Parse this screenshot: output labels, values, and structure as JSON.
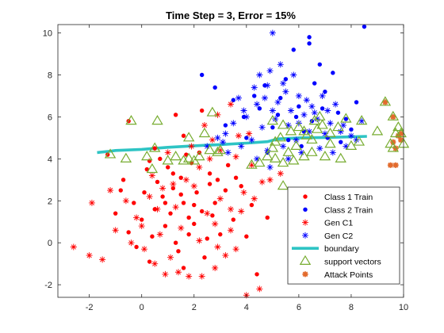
{
  "chart_data": {
    "type": "scatter",
    "title": "Time Step = 3, Error = 15%",
    "xlabel": "",
    "ylabel": "",
    "xlim": [
      -3.2,
      10
    ],
    "ylim": [
      -2.6,
      10.4
    ],
    "xticks": [
      -2,
      0,
      2,
      4,
      6,
      8,
      10
    ],
    "yticks": [
      -2,
      0,
      2,
      4,
      6,
      8,
      10
    ],
    "grid": false,
    "legend_position": "bottom-right",
    "series": [
      {
        "name": "Class 1 Train",
        "marker": "dot",
        "color": "#ff0000",
        "points": [
          [
            0.2,
            3.5
          ],
          [
            0.5,
            1.6
          ],
          [
            -0.3,
            1.9
          ],
          [
            0.8,
            2.2
          ],
          [
            1.2,
            2.6
          ],
          [
            1.5,
            3.1
          ],
          [
            1.1,
            1.4
          ],
          [
            0.9,
            0.8
          ],
          [
            1.6,
            1.9
          ],
          [
            2.1,
            2.4
          ],
          [
            2.3,
            1.5
          ],
          [
            0.4,
            0.3
          ],
          [
            1.4,
            -0.4
          ],
          [
            2.5,
            0.2
          ],
          [
            1.8,
            1.2
          ],
          [
            0.6,
            2.9
          ],
          [
            0.0,
            1.1
          ],
          [
            -0.8,
            2.5
          ],
          [
            -0.5,
            0.5
          ],
          [
            1.3,
            0.0
          ],
          [
            2.0,
            0.9
          ],
          [
            2.8,
            1.9
          ],
          [
            3.2,
            2.5
          ],
          [
            2.6,
            3.3
          ],
          [
            1.9,
            3.8
          ],
          [
            1.0,
            3.6
          ],
          [
            0.7,
            4.0
          ],
          [
            1.7,
            4.2
          ],
          [
            2.2,
            4.3
          ],
          [
            3.5,
            1.1
          ],
          [
            3.0,
            0.4
          ],
          [
            2.4,
            -0.7
          ],
          [
            1.6,
            -1.2
          ],
          [
            0.3,
            -0.9
          ],
          [
            -0.2,
            -0.2
          ],
          [
            4.0,
            0.3
          ],
          [
            4.2,
            1.8
          ],
          [
            3.8,
            2.7
          ],
          [
            3.3,
            3.7
          ],
          [
            2.9,
            3.0
          ],
          [
            4.4,
            -1.5
          ],
          [
            4.8,
            1.2
          ],
          [
            0.1,
            2.4
          ],
          [
            1.5,
            2.3
          ],
          [
            0.9,
            1.9
          ],
          [
            1.2,
            3.3
          ],
          [
            2.6,
            2.8
          ],
          [
            1.8,
            0.4
          ],
          [
            -1.0,
            1.4
          ],
          [
            -0.7,
            3.0
          ],
          [
            0.5,
            4.5
          ],
          [
            1.6,
            5.1
          ],
          [
            2.3,
            6.3
          ],
          [
            1.3,
            6.1
          ],
          [
            -0.5,
            5.8
          ],
          [
            -1.3,
            4.2
          ],
          [
            0.3,
            3.9
          ],
          [
            2.0,
            1.8
          ],
          [
            2.7,
            1.3
          ],
          [
            3.6,
            3.1
          ]
        ]
      },
      {
        "name": "Class 2 Train",
        "marker": "dot",
        "color": "#0000ff",
        "points": [
          [
            5.5,
            7.8
          ],
          [
            6.0,
            6.5
          ],
          [
            6.5,
            5.8
          ],
          [
            5.2,
            6.1
          ],
          [
            7.0,
            7.2
          ],
          [
            7.5,
            6.2
          ],
          [
            6.8,
            8.5
          ],
          [
            5.8,
            9.2
          ],
          [
            6.2,
            5.3
          ],
          [
            5.0,
            5.5
          ],
          [
            4.5,
            6.4
          ],
          [
            4.3,
            7.0
          ],
          [
            3.9,
            6.0
          ],
          [
            3.5,
            6.8
          ],
          [
            7.8,
            5.9
          ],
          [
            8.2,
            6.7
          ],
          [
            8.5,
            10.3
          ],
          [
            7.1,
            5.0
          ],
          [
            6.6,
            7.6
          ],
          [
            5.6,
            4.9
          ],
          [
            4.8,
            4.3
          ],
          [
            4.0,
            5.0
          ],
          [
            3.2,
            5.6
          ],
          [
            2.8,
            7.4
          ],
          [
            2.3,
            8.0
          ],
          [
            6.4,
            9.8
          ],
          [
            6.1,
            4.6
          ],
          [
            7.3,
            8.1
          ],
          [
            8.0,
            5.4
          ],
          [
            5.3,
            6.9
          ],
          [
            4.7,
            7.5
          ],
          [
            5.9,
            6.0
          ],
          [
            6.9,
            6.4
          ],
          [
            7.6,
            4.8
          ],
          [
            6.4,
            9.5
          ]
        ]
      },
      {
        "name": "Gen C1",
        "marker": "asterisk",
        "color": "#ff0000",
        "points": [
          [
            -2.6,
            -0.2
          ],
          [
            -2.0,
            -0.6
          ],
          [
            -1.5,
            -0.8
          ],
          [
            -1.2,
            2.5
          ],
          [
            -1.9,
            1.9
          ],
          [
            -1.0,
            0.6
          ],
          [
            -0.6,
            2.0
          ],
          [
            -0.2,
            1.2
          ],
          [
            0.1,
            -0.3
          ],
          [
            0.5,
            -1.0
          ],
          [
            0.9,
            -1.5
          ],
          [
            1.4,
            -1.4
          ],
          [
            1.8,
            -1.6
          ],
          [
            2.3,
            -1.6
          ],
          [
            2.8,
            -1.2
          ],
          [
            3.2,
            -0.6
          ],
          [
            3.6,
            -0.3
          ],
          [
            4.0,
            -2.5
          ],
          [
            4.5,
            -2.2
          ],
          [
            3.4,
            0.6
          ],
          [
            3.8,
            1.5
          ],
          [
            4.3,
            2.1
          ],
          [
            4.6,
            2.9
          ],
          [
            4.2,
            3.7
          ],
          [
            3.6,
            4.1
          ],
          [
            3.0,
            4.4
          ],
          [
            2.6,
            4.0
          ],
          [
            2.2,
            3.6
          ],
          [
            1.7,
            3.0
          ],
          [
            1.2,
            2.8
          ],
          [
            0.8,
            2.6
          ],
          [
            0.3,
            2.2
          ],
          [
            0.0,
            0.8
          ],
          [
            0.7,
            0.4
          ],
          [
            1.5,
            0.7
          ],
          [
            2.2,
            0.1
          ],
          [
            2.9,
            -0.2
          ],
          [
            2.5,
            1.4
          ],
          [
            3.0,
            2.1
          ],
          [
            3.9,
            2.4
          ],
          [
            1.0,
            4.3
          ],
          [
            1.9,
            4.6
          ],
          [
            2.7,
            4.9
          ],
          [
            2.4,
            5.6
          ],
          [
            2.9,
            6.1
          ],
          [
            3.4,
            6.6
          ],
          [
            4.9,
            3.0
          ],
          [
            5.3,
            3.3
          ],
          [
            4.1,
            5.2
          ],
          [
            3.7,
            5.1
          ],
          [
            0.6,
            1.6
          ],
          [
            1.3,
            1.7
          ],
          [
            2.0,
            2.7
          ],
          [
            3.4,
            1.6
          ],
          [
            2.8,
            0.9
          ],
          [
            1.1,
            -0.7
          ],
          [
            -0.4,
            0.0
          ],
          [
            0.4,
            3.2
          ]
        ]
      },
      {
        "name": "Gen C2",
        "marker": "asterisk",
        "color": "#0000ff",
        "points": [
          [
            5.0,
            10.0
          ],
          [
            4.5,
            8.0
          ],
          [
            4.8,
            7.5
          ],
          [
            5.5,
            7.2
          ],
          [
            6.0,
            7.0
          ],
          [
            6.3,
            6.8
          ],
          [
            5.2,
            6.7
          ],
          [
            4.4,
            6.6
          ],
          [
            3.9,
            6.3
          ],
          [
            3.5,
            5.7
          ],
          [
            3.2,
            5.2
          ],
          [
            2.9,
            5.0
          ],
          [
            4.2,
            4.9
          ],
          [
            4.6,
            5.5
          ],
          [
            5.1,
            5.9
          ],
          [
            5.7,
            6.3
          ],
          [
            6.2,
            6.1
          ],
          [
            6.7,
            5.9
          ],
          [
            7.2,
            5.7
          ],
          [
            7.6,
            5.3
          ],
          [
            8.0,
            5.1
          ],
          [
            8.4,
            5.8
          ],
          [
            7.4,
            6.6
          ],
          [
            6.9,
            7.0
          ],
          [
            5.8,
            8.0
          ],
          [
            5.3,
            8.5
          ],
          [
            4.9,
            8.2
          ],
          [
            4.3,
            7.4
          ],
          [
            3.7,
            6.9
          ],
          [
            4.0,
            6.0
          ],
          [
            6.4,
            5.3
          ],
          [
            5.9,
            4.9
          ],
          [
            5.4,
            4.6
          ],
          [
            4.8,
            4.4
          ],
          [
            3.8,
            4.6
          ],
          [
            3.3,
            4.3
          ],
          [
            4.4,
            4.0
          ],
          [
            4.9,
            3.6
          ],
          [
            5.6,
            4.0
          ],
          [
            6.1,
            4.3
          ],
          [
            6.8,
            4.5
          ],
          [
            7.3,
            4.3
          ],
          [
            7.8,
            4.6
          ],
          [
            8.2,
            4.9
          ],
          [
            7.0,
            5.2
          ],
          [
            6.5,
            6.5
          ],
          [
            5.6,
            5.6
          ],
          [
            5.0,
            6.3
          ],
          [
            4.7,
            6.9
          ],
          [
            5.4,
            7.6
          ],
          [
            6.0,
            5.7
          ],
          [
            6.6,
            6.2
          ],
          [
            7.1,
            6.3
          ],
          [
            7.7,
            5.6
          ],
          [
            3.1,
            4.8
          ],
          [
            2.5,
            4.6
          ]
        ]
      },
      {
        "name": "boundary",
        "marker": "line",
        "color": "#2ec4c4",
        "points": [
          [
            -1.7,
            4.3
          ],
          [
            -1.3,
            4.35
          ],
          [
            -1.0,
            4.4
          ],
          [
            0.0,
            4.45
          ],
          [
            1.0,
            4.55
          ],
          [
            2.0,
            4.62
          ],
          [
            3.0,
            4.68
          ],
          [
            4.0,
            4.75
          ],
          [
            4.8,
            4.82
          ],
          [
            5.2,
            4.95
          ],
          [
            6.0,
            5.0
          ],
          [
            7.0,
            5.02
          ],
          [
            8.0,
            5.05
          ],
          [
            8.6,
            5.07
          ]
        ]
      },
      {
        "name": "support vectors",
        "marker": "triangle",
        "color": "#77ac30",
        "points": [
          [
            -1.2,
            4.2
          ],
          [
            -0.4,
            5.8
          ],
          [
            0.6,
            5.8
          ],
          [
            -0.6,
            4.0
          ],
          [
            0.2,
            4.1
          ],
          [
            0.4,
            3.5
          ],
          [
            1.0,
            3.9
          ],
          [
            1.3,
            4.1
          ],
          [
            1.6,
            3.9
          ],
          [
            1.8,
            4.0
          ],
          [
            2.0,
            3.9
          ],
          [
            2.2,
            4.1
          ],
          [
            2.6,
            4.4
          ],
          [
            2.9,
            4.3
          ],
          [
            3.0,
            4.4
          ],
          [
            2.4,
            5.2
          ],
          [
            2.7,
            6.2
          ],
          [
            1.8,
            5.0
          ],
          [
            0.5,
            4.5
          ],
          [
            4.2,
            3.7
          ],
          [
            4.5,
            3.8
          ],
          [
            4.8,
            4.1
          ],
          [
            5.0,
            4.5
          ],
          [
            5.1,
            4.8
          ],
          [
            5.3,
            5.0
          ],
          [
            5.0,
            5.8
          ],
          [
            5.4,
            5.6
          ],
          [
            5.7,
            5.3
          ],
          [
            6.0,
            5.5
          ],
          [
            6.3,
            5.1
          ],
          [
            6.5,
            4.9
          ],
          [
            6.7,
            5.4
          ],
          [
            6.9,
            5.6
          ],
          [
            7.2,
            5.2
          ],
          [
            7.5,
            5.5
          ],
          [
            7.8,
            5.9
          ],
          [
            8.4,
            5.8
          ],
          [
            8.0,
            4.6
          ],
          [
            7.6,
            4.0
          ],
          [
            7.0,
            4.1
          ],
          [
            6.5,
            4.3
          ],
          [
            6.2,
            4.1
          ],
          [
            5.8,
            3.9
          ],
          [
            5.4,
            3.8
          ],
          [
            5.1,
            4.0
          ],
          [
            5.6,
            4.3
          ],
          [
            5.9,
            4.6
          ],
          [
            6.2,
            5.3
          ],
          [
            6.6,
            5.8
          ],
          [
            6.8,
            6.0
          ],
          [
            5.4,
            2.7
          ],
          [
            7.2,
            4.7
          ],
          [
            8.3,
            4.8
          ],
          [
            9.0,
            5.3
          ],
          [
            9.3,
            6.7
          ],
          [
            9.6,
            6.0
          ],
          [
            9.7,
            5.2
          ],
          [
            9.9,
            5.2
          ],
          [
            10.0,
            4.7
          ],
          [
            9.6,
            4.5
          ],
          [
            9.8,
            5.5
          ],
          [
            9.5,
            4.7
          ]
        ]
      },
      {
        "name": "Attack Points",
        "marker": "filled-star",
        "color": "#e26a2c",
        "points": [
          [
            9.3,
            6.7
          ],
          [
            9.6,
            6.0
          ],
          [
            9.8,
            5.1
          ],
          [
            9.9,
            4.9
          ],
          [
            9.7,
            4.5
          ],
          [
            9.5,
            3.7
          ],
          [
            9.7,
            3.7
          ],
          [
            9.6,
            4.8
          ],
          [
            9.9,
            5.2
          ]
        ]
      }
    ]
  }
}
